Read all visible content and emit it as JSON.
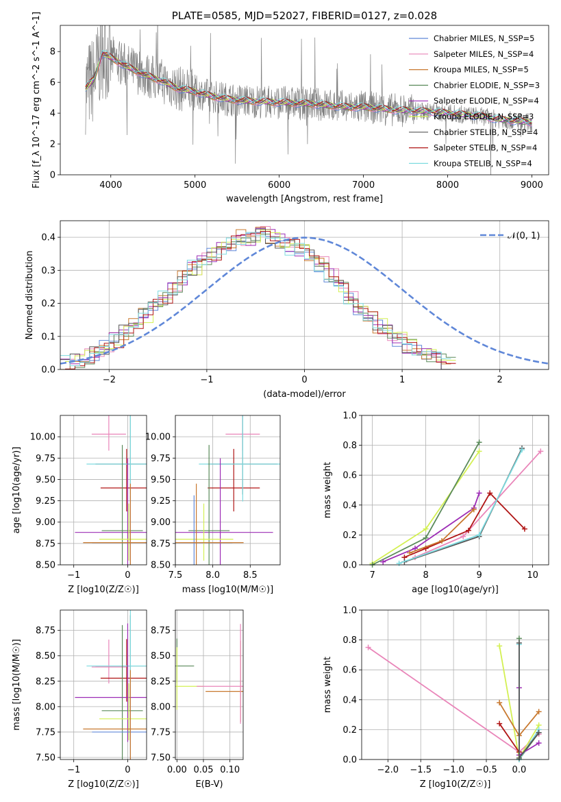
{
  "chart_data": [
    {
      "type": "line",
      "title": "PLATE=0585, MJD=52027, FIBERID=0127, z=0.028",
      "xlabel": "wavelength [Angstrom, rest frame]",
      "ylabel": "Flux [f_λ 10^-17 erg cm^-2 s^-1 A^-1]",
      "xlim": [
        3400,
        9200
      ],
      "ylim": [
        0,
        9.7
      ],
      "xticks": [
        "4000",
        "5000",
        "6000",
        "7000",
        "8000",
        "9000"
      ],
      "yticks": [
        "0",
        "2",
        "4",
        "6",
        "8"
      ],
      "grid": false,
      "legend_position": "top-right",
      "legend": [
        {
          "name": "Chabrier MILES, N_SSP=5",
          "color": "#5f87d8"
        },
        {
          "name": "Salpeter MILES, N_SSP=4",
          "color": "#e985b9"
        },
        {
          "name": "Kroupa MILES, N_SSP=5",
          "color": "#c8782e"
        },
        {
          "name": "Chabrier ELODIE, N_SSP=3",
          "color": "#5a8a5a"
        },
        {
          "name": "Salpeter ELODIE, N_SSP=4",
          "color": "#9c2bb5"
        },
        {
          "name": "Kroupa ELODIE, N_SSP=3",
          "color": "#d3f052"
        },
        {
          "name": "Chabrier STELIB, N_SSP=4",
          "color": "#555555"
        },
        {
          "name": "Salpeter STELIB, N_SSP=4",
          "color": "#b01515"
        },
        {
          "name": "Kroupa STELIB, N_SSP=4",
          "color": "#7ddbe0"
        }
      ],
      "data_curve": {
        "name": "data",
        "color": "#808080"
      },
      "model_continuum_x": [
        3700,
        3800,
        3900,
        4000,
        4100,
        4200,
        4400,
        4600,
        4800,
        5000,
        5200,
        5400,
        5600,
        5800,
        6000,
        6200,
        6400,
        6600,
        6800,
        7000,
        7200,
        7400,
        7600,
        7800,
        8000,
        8200,
        8400,
        8600,
        8800,
        9000
      ],
      "model_continuum_y": [
        5.6,
        6.2,
        7.9,
        7.6,
        7.3,
        7.0,
        6.5,
        6.1,
        5.6,
        5.4,
        5.1,
        4.9,
        4.8,
        4.75,
        4.7,
        4.65,
        4.6,
        4.5,
        4.4,
        4.4,
        4.3,
        4.2,
        4.15,
        4.1,
        4.0,
        3.9,
        3.8,
        3.6,
        3.5,
        3.4
      ]
    },
    {
      "type": "histogram",
      "xlabel": "(data-model)/error",
      "ylabel": "Normed distribution",
      "xlim": [
        -2.5,
        2.5
      ],
      "ylim": [
        0,
        0.45
      ],
      "xticks": [
        "−2",
        "−1",
        "0",
        "1",
        "2"
      ],
      "yticks": [
        "0.0",
        "0.1",
        "0.2",
        "0.3",
        "0.4"
      ],
      "grid": true,
      "legend_position": "top-right",
      "legend": [
        {
          "name": "𝒩(0, 1)",
          "color": "#5f87d8",
          "style": "dashed"
        }
      ],
      "series_values_bins_of_0_1": [
        0.02,
        0.03,
        0.04,
        0.05,
        0.07,
        0.09,
        0.11,
        0.13,
        0.16,
        0.19,
        0.22,
        0.25,
        0.28,
        0.31,
        0.33,
        0.35,
        0.37,
        0.38,
        0.4,
        0.4,
        0.41,
        0.4,
        0.39,
        0.37,
        0.36,
        0.34,
        0.32,
        0.28,
        0.25,
        0.22,
        0.19,
        0.16,
        0.13,
        0.11,
        0.09,
        0.07,
        0.05,
        0.04,
        0.03,
        0.02
      ]
    },
    {
      "type": "scatter",
      "xlabel": "Z [log10(Z/Z☉)]",
      "ylabel": "age [log10(age/yr)]",
      "xlim": [
        -1.25,
        0.35
      ],
      "ylim": [
        8.5,
        10.25
      ],
      "xticks": [
        "−1",
        "0"
      ],
      "yticks": [
        "8.50",
        "8.75",
        "9.00",
        "9.25",
        "9.50",
        "9.75",
        "10.00"
      ],
      "grid": true,
      "points": [
        {
          "x": -0.35,
          "y": 10.03,
          "color": "#e985b9"
        },
        {
          "x": -0.02,
          "y": 9.4,
          "color": "#b01515"
        },
        {
          "x": 0.05,
          "y": 9.68,
          "color": "#555555"
        },
        {
          "x": 0.05,
          "y": 9.68,
          "color": "#7ddbe0"
        },
        {
          "x": 0.0,
          "y": 8.88,
          "color": "#9c2bb5"
        },
        {
          "x": -0.1,
          "y": 8.9,
          "color": "#5a8a5a"
        },
        {
          "x": 0.02,
          "y": 8.8,
          "color": "#d3f052"
        },
        {
          "x": 0.05,
          "y": 8.76,
          "color": "#5f87d8"
        },
        {
          "x": 0.05,
          "y": 8.76,
          "color": "#c8782e"
        }
      ]
    },
    {
      "type": "scatter",
      "xlabel": "mass [log10(M/M☉)]",
      "ylabel": "",
      "xlim": [
        7.5,
        8.9
      ],
      "ylim": [
        8.5,
        10.25
      ],
      "xticks": [
        "7.5",
        "8.0",
        "8.5"
      ],
      "yticks": [
        "8.50",
        "8.75",
        "9.00",
        "9.25",
        "9.50",
        "9.75",
        "10.00"
      ],
      "grid": true,
      "points": [
        {
          "x": 8.4,
          "y": 10.03,
          "color": "#e985b9"
        },
        {
          "x": 8.28,
          "y": 9.4,
          "color": "#b01515"
        },
        {
          "x": 8.4,
          "y": 9.68,
          "color": "#555555"
        },
        {
          "x": 8.4,
          "y": 9.68,
          "color": "#7ddbe0"
        },
        {
          "x": 8.1,
          "y": 8.88,
          "color": "#9c2bb5"
        },
        {
          "x": 7.95,
          "y": 8.9,
          "color": "#5a8a5a"
        },
        {
          "x": 7.88,
          "y": 8.8,
          "color": "#d3f052"
        },
        {
          "x": 7.75,
          "y": 8.76,
          "color": "#5f87d8"
        },
        {
          "x": 7.78,
          "y": 8.76,
          "color": "#c8782e"
        }
      ]
    },
    {
      "type": "line",
      "xlabel": "age [log10(age/yr)]",
      "ylabel": "mass weight",
      "xlim": [
        6.8,
        10.3
      ],
      "ylim": [
        0,
        1.0
      ],
      "xticks": [
        "7",
        "8",
        "9",
        "10"
      ],
      "yticks": [
        "0.0",
        "0.2",
        "0.4",
        "0.6",
        "0.8",
        "1.0"
      ],
      "grid": true,
      "series": [
        {
          "name": "Kroupa ELODIE, N_SSP=3",
          "color": "#d3f052",
          "x": [
            7.0,
            8.0,
            9.0
          ],
          "y": [
            0.01,
            0.24,
            0.76
          ]
        },
        {
          "name": "Chabrier ELODIE, N_SSP=3",
          "color": "#5a8a5a",
          "x": [
            7.0,
            8.0,
            9.0
          ],
          "y": [
            0.0,
            0.18,
            0.82
          ]
        },
        {
          "name": "Salpeter MILES, N_SSP=4",
          "color": "#e985b9",
          "x": [
            7.8,
            8.7,
            10.15
          ],
          "y": [
            0.05,
            0.19,
            0.76
          ]
        },
        {
          "name": "Salpeter ELODIE, N_SSP=4",
          "color": "#9c2bb5",
          "x": [
            7.2,
            7.8,
            8.9,
            9.0
          ],
          "y": [
            0.02,
            0.11,
            0.38,
            0.48
          ]
        },
        {
          "name": "Salpeter STELIB, N_SSP=4",
          "color": "#b01515",
          "x": [
            7.6,
            8.0,
            8.8,
            9.2,
            9.85
          ],
          "y": [
            0.05,
            0.11,
            0.23,
            0.48,
            0.24
          ]
        },
        {
          "name": "Chabrier STELIB, N_SSP=4",
          "color": "#555555",
          "x": [
            7.6,
            9.0,
            9.8
          ],
          "y": [
            0.02,
            0.19,
            0.78
          ]
        },
        {
          "name": "Kroupa STELIB, N_SSP=4",
          "color": "#7ddbe0",
          "x": [
            7.5,
            9.0,
            9.8
          ],
          "y": [
            0.01,
            0.2,
            0.77
          ]
        },
        {
          "name": "Kroupa MILES, N_SSP=5",
          "color": "#c8782e",
          "x": [
            7.7,
            8.3,
            8.9
          ],
          "y": [
            0.08,
            0.16,
            0.37
          ]
        }
      ]
    },
    {
      "type": "scatter",
      "xlabel": "Z [log10(Z/Z☉)]",
      "ylabel": "mass [log10(M/M☉)]",
      "xlim": [
        -1.25,
        0.35
      ],
      "ylim": [
        7.48,
        8.95
      ],
      "xticks": [
        "−1",
        "0"
      ],
      "yticks": [
        "7.50",
        "7.75",
        "8.00",
        "8.25",
        "8.50",
        "8.75"
      ],
      "grid": true,
      "points": [
        {
          "x": -0.35,
          "y": 8.39,
          "color": "#e985b9"
        },
        {
          "x": -0.02,
          "y": 8.28,
          "color": "#b01515"
        },
        {
          "x": 0.05,
          "y": 8.4,
          "color": "#555555"
        },
        {
          "x": 0.05,
          "y": 8.4,
          "color": "#7ddbe0"
        },
        {
          "x": 0.0,
          "y": 8.09,
          "color": "#9c2bb5"
        },
        {
          "x": -0.1,
          "y": 7.96,
          "color": "#5a8a5a"
        },
        {
          "x": 0.02,
          "y": 7.88,
          "color": "#d3f052"
        },
        {
          "x": 0.05,
          "y": 7.75,
          "color": "#5f87d8"
        },
        {
          "x": 0.05,
          "y": 7.78,
          "color": "#c8782e"
        }
      ]
    },
    {
      "type": "scatter",
      "xlabel": "E(B-V)",
      "ylabel": "",
      "xlim": [
        -0.003,
        0.125
      ],
      "ylim": [
        7.48,
        8.95
      ],
      "xticks": [
        "0.00",
        "0.05",
        "0.10"
      ],
      "yticks": [
        "7.50",
        "7.75",
        "8.00",
        "8.25",
        "8.50",
        "8.75"
      ],
      "grid": true,
      "points": [
        {
          "x": 0.0,
          "y": 8.4,
          "color": "#5a8a5a"
        },
        {
          "x": 0.0,
          "y": 8.2,
          "color": "#d3f052"
        },
        {
          "x": 0.12,
          "y": 8.15,
          "color": "#c8782e"
        },
        {
          "x": 0.12,
          "y": 8.2,
          "color": "#e985b9"
        }
      ]
    },
    {
      "type": "line",
      "xlabel": "Z [log10(Z/Z☉)]",
      "ylabel": "mass weight",
      "xlim": [
        -2.4,
        0.45
      ],
      "ylim": [
        0,
        1.0
      ],
      "xticks": [
        "−2.0",
        "−1.5",
        "−1.0",
        "−0.5",
        "0.0"
      ],
      "yticks": [
        "0.0",
        "0.2",
        "0.4",
        "0.6",
        "0.8",
        "1.0"
      ],
      "grid": true,
      "series": [
        {
          "name": "Salpeter MILES, N_SSP=4",
          "color": "#e985b9",
          "x": [
            -2.3,
            0.0,
            0.3
          ],
          "y": [
            0.75,
            0.05,
            0.17
          ]
        },
        {
          "name": "Kroupa ELODIE, N_SSP=3",
          "color": "#d3f052",
          "x": [
            -0.3,
            0.0,
            0.3
          ],
          "y": [
            0.76,
            0.01,
            0.23
          ]
        },
        {
          "name": "Kroupa MILES, N_SSP=5",
          "color": "#c8782e",
          "x": [
            -0.3,
            0.0,
            0.3
          ],
          "y": [
            0.38,
            0.16,
            0.32
          ]
        },
        {
          "name": "Salpeter STELIB, N_SSP=4",
          "color": "#b01515",
          "x": [
            -0.3,
            0.0
          ],
          "y": [
            0.24,
            0.05
          ]
        },
        {
          "name": "Chabrier ELODIE, N_SSP=3",
          "color": "#5a8a5a",
          "x": [
            0.0,
            0.0,
            0.3
          ],
          "y": [
            0.81,
            0.0,
            0.18
          ]
        },
        {
          "name": "Salpeter ELODIE, N_SSP=4",
          "color": "#9c2bb5",
          "x": [
            0.0,
            0.0,
            0.3
          ],
          "y": [
            0.48,
            0.03,
            0.11
          ]
        },
        {
          "name": "Kroupa STELIB, N_SSP=4",
          "color": "#7ddbe0",
          "x": [
            0.0,
            0.0,
            0.3
          ],
          "y": [
            0.77,
            0.0,
            0.2
          ]
        },
        {
          "name": "Chabrier STELIB, N_SSP=4",
          "color": "#555555",
          "x": [
            0.0,
            0.0,
            0.3
          ],
          "y": [
            0.78,
            0.01,
            0.18
          ]
        }
      ]
    }
  ]
}
